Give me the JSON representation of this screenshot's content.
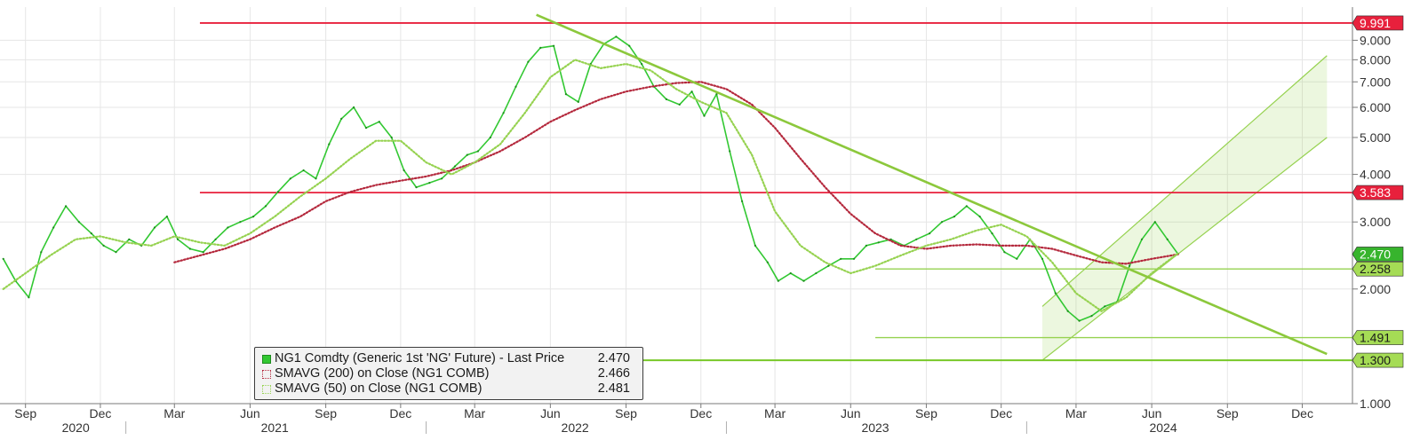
{
  "chart_data": {
    "type": "line",
    "title": "",
    "xlabel": "",
    "ylabel": "",
    "y_scale": "log",
    "ylim": [
      1,
      11
    ],
    "y_ticks": [
      {
        "value": 1,
        "label": "1.000"
      },
      {
        "value": 2,
        "label": "2.000"
      },
      {
        "value": 3,
        "label": "3.000"
      },
      {
        "value": 4,
        "label": "4.000"
      },
      {
        "value": 5,
        "label": "5.000"
      },
      {
        "value": 6,
        "label": "6.000"
      },
      {
        "value": 7,
        "label": "7.000"
      },
      {
        "value": 8,
        "label": "8.000"
      },
      {
        "value": 9,
        "label": "9.000"
      }
    ],
    "x_months": [
      {
        "label": "Sep",
        "date": "2020-09"
      },
      {
        "label": "Dec",
        "date": "2020-12"
      },
      {
        "label": "Mar",
        "date": "2021-03"
      },
      {
        "label": "Jun",
        "date": "2021-06"
      },
      {
        "label": "Sep",
        "date": "2021-09"
      },
      {
        "label": "Dec",
        "date": "2021-12"
      },
      {
        "label": "Mar",
        "date": "2022-03"
      },
      {
        "label": "Jun",
        "date": "2022-06"
      },
      {
        "label": "Sep",
        "date": "2022-09"
      },
      {
        "label": "Dec",
        "date": "2022-12"
      },
      {
        "label": "Mar",
        "date": "2023-03"
      },
      {
        "label": "Jun",
        "date": "2023-06"
      },
      {
        "label": "Sep",
        "date": "2023-09"
      },
      {
        "label": "Dec",
        "date": "2023-12"
      },
      {
        "label": "Mar",
        "date": "2024-03"
      },
      {
        "label": "Jun",
        "date": "2024-06"
      },
      {
        "label": "Sep",
        "date": "2024-09"
      },
      {
        "label": "Dec",
        "date": "2024-12"
      }
    ],
    "x_years": [
      {
        "label": "2020",
        "date": "2020-11"
      },
      {
        "label": "2021",
        "date": "2021-07"
      },
      {
        "label": "2022",
        "date": "2022-07"
      },
      {
        "label": "2023",
        "date": "2023-07"
      },
      {
        "label": "2024",
        "date": "2024-06-15"
      }
    ],
    "legend": {
      "placement": "bottom-left",
      "entries": [
        {
          "label": "NG1 Comdty (Generic 1st 'NG' Future) - Last Price",
          "value": "2.470",
          "style": "solid",
          "color": "#32c832"
        },
        {
          "label": "SMAVG (200)  on Close (NG1 COMB)",
          "value": "2.466",
          "style": "dotted",
          "color": "#b4283c"
        },
        {
          "label": "SMAVG (50)  on Close (NG1 COMB)",
          "value": "2.481",
          "style": "dotted",
          "color": "#96d250"
        }
      ]
    },
    "price_badges": [
      {
        "label": "9.991",
        "value": 9.991,
        "bg": "#e8203c",
        "fg": "#ffffff"
      },
      {
        "label": "3.583",
        "value": 3.583,
        "bg": "#e8203c",
        "fg": "#ffffff"
      },
      {
        "label": "2.470",
        "value": 2.47,
        "bg": "#37b42d",
        "fg": "#ffffff"
      },
      {
        "label": "2.258",
        "value": 2.258,
        "bg": "#a5dc55",
        "fg": "#1a1a1a"
      },
      {
        "label": "1.491",
        "value": 1.491,
        "bg": "#a5dc55",
        "fg": "#1a1a1a"
      },
      {
        "label": "1.300",
        "value": 1.3,
        "bg": "#a5dc55",
        "fg": "#1a1a1a"
      }
    ],
    "horizontal_lines": [
      {
        "value": 9.991,
        "from": "2021-04",
        "color": "#e8203c"
      },
      {
        "value": 3.583,
        "from": "2021-04",
        "color": "#e8203c"
      },
      {
        "value": 2.258,
        "from": "2023-07",
        "color": "#96d250"
      },
      {
        "value": 1.491,
        "from": "2023-07",
        "color": "#96d250"
      },
      {
        "value": 1.3,
        "from": "2022-03",
        "color": "#78c828"
      }
    ],
    "trendline": {
      "from": {
        "date": "2022-05",
        "value": 10.5
      },
      "to": {
        "date": "2024-12-31",
        "value": 1.35
      },
      "color": "#8cc83c"
    },
    "channel": {
      "color": "#96d250",
      "lower": {
        "from": {
          "date": "2024-01-20",
          "value": 1.3
        },
        "to": {
          "date": "2024-12-31",
          "value": 5.0
        }
      },
      "upper": {
        "from": {
          "date": "2024-01-20",
          "value": 1.8
        },
        "to": {
          "date": "2024-12-31",
          "value": 8.2
        }
      }
    },
    "series": [
      {
        "name": "NG1 Comdty (Generic 1st 'NG' Future) - Last Price",
        "color": "#32c832",
        "x": [
          "2020-08-05",
          "2020-08-20",
          "2020-09-05",
          "2020-09-20",
          "2020-10-05",
          "2020-10-20",
          "2020-11-05",
          "2020-11-20",
          "2020-12-05",
          "2020-12-20",
          "2021-01-05",
          "2021-01-20",
          "2021-02-05",
          "2021-02-20",
          "2021-03-05",
          "2021-03-20",
          "2021-04-05",
          "2021-04-20",
          "2021-05-05",
          "2021-05-20",
          "2021-06-05",
          "2021-06-20",
          "2021-07-05",
          "2021-07-20",
          "2021-08-05",
          "2021-08-20",
          "2021-09-05",
          "2021-09-20",
          "2021-10-05",
          "2021-10-20",
          "2021-11-05",
          "2021-11-20",
          "2021-12-05",
          "2021-12-20",
          "2022-01-05",
          "2022-01-20",
          "2022-02-05",
          "2022-02-20",
          "2022-03-05",
          "2022-03-20",
          "2022-04-05",
          "2022-04-20",
          "2022-05-05",
          "2022-05-20",
          "2022-06-05",
          "2022-06-20",
          "2022-07-05",
          "2022-07-20",
          "2022-08-05",
          "2022-08-20",
          "2022-09-05",
          "2022-09-20",
          "2022-10-05",
          "2022-10-20",
          "2022-11-05",
          "2022-11-20",
          "2022-12-05",
          "2022-12-20",
          "2023-01-05",
          "2023-01-20",
          "2023-02-05",
          "2023-02-20",
          "2023-03-05",
          "2023-03-20",
          "2023-04-05",
          "2023-04-20",
          "2023-05-05",
          "2023-05-20",
          "2023-06-05",
          "2023-06-20",
          "2023-07-05",
          "2023-07-20",
          "2023-08-05",
          "2023-08-20",
          "2023-09-05",
          "2023-09-20",
          "2023-10-05",
          "2023-10-20",
          "2023-11-05",
          "2023-11-20",
          "2023-12-05",
          "2023-12-20",
          "2024-01-05",
          "2024-01-20",
          "2024-02-05",
          "2024-02-20",
          "2024-03-05",
          "2024-03-20",
          "2024-04-05",
          "2024-04-20",
          "2024-05-05",
          "2024-05-20",
          "2024-06-05",
          "2024-06-20",
          "2024-07-03"
        ],
        "values": [
          2.4,
          2.1,
          1.9,
          2.5,
          2.9,
          3.3,
          3.0,
          2.8,
          2.6,
          2.5,
          2.7,
          2.6,
          2.9,
          3.1,
          2.7,
          2.55,
          2.5,
          2.7,
          2.9,
          3.0,
          3.1,
          3.3,
          3.6,
          3.9,
          4.1,
          3.9,
          4.8,
          5.6,
          6.0,
          5.3,
          5.5,
          5.0,
          4.1,
          3.7,
          3.8,
          3.9,
          4.2,
          4.5,
          4.6,
          5.0,
          5.8,
          6.8,
          7.9,
          8.6,
          8.7,
          6.5,
          6.2,
          7.8,
          8.8,
          9.2,
          8.7,
          7.8,
          6.8,
          6.3,
          6.1,
          6.6,
          5.7,
          6.5,
          4.6,
          3.4,
          2.6,
          2.35,
          2.1,
          2.2,
          2.1,
          2.2,
          2.3,
          2.4,
          2.4,
          2.6,
          2.65,
          2.7,
          2.6,
          2.7,
          2.8,
          3.0,
          3.1,
          3.3,
          3.1,
          2.8,
          2.5,
          2.4,
          2.7,
          2.4,
          1.95,
          1.75,
          1.65,
          1.7,
          1.8,
          1.85,
          2.3,
          2.7,
          3.0,
          2.7,
          2.47
        ]
      },
      {
        "name": "SMAVG (200)  on Close (NG1 COMB)",
        "color": "#b4283c",
        "x": [
          "2021-03-01",
          "2021-04-01",
          "2021-05-01",
          "2021-06-01",
          "2021-07-01",
          "2021-08-01",
          "2021-09-01",
          "2021-10-01",
          "2021-11-01",
          "2021-12-01",
          "2022-01-01",
          "2022-02-01",
          "2022-03-01",
          "2022-04-01",
          "2022-05-01",
          "2022-06-01",
          "2022-07-01",
          "2022-08-01",
          "2022-09-01",
          "2022-10-01",
          "2022-11-01",
          "2022-12-01",
          "2023-01-01",
          "2023-02-01",
          "2023-03-01",
          "2023-04-01",
          "2023-05-01",
          "2023-06-01",
          "2023-07-01",
          "2023-08-01",
          "2023-09-01",
          "2023-10-01",
          "2023-11-01",
          "2023-12-01",
          "2024-01-01",
          "2024-02-01",
          "2024-03-01",
          "2024-04-01",
          "2024-05-01",
          "2024-06-01",
          "2024-07-03"
        ],
        "values": [
          2.35,
          2.45,
          2.55,
          2.7,
          2.9,
          3.1,
          3.4,
          3.6,
          3.75,
          3.85,
          3.95,
          4.1,
          4.3,
          4.6,
          5.0,
          5.5,
          5.9,
          6.3,
          6.6,
          6.8,
          6.95,
          7.0,
          6.7,
          6.1,
          5.3,
          4.4,
          3.7,
          3.15,
          2.8,
          2.6,
          2.55,
          2.6,
          2.62,
          2.6,
          2.6,
          2.55,
          2.45,
          2.35,
          2.33,
          2.4,
          2.466
        ]
      },
      {
        "name": "SMAVG (50)  on Close (NG1 COMB)",
        "color": "#96d250",
        "x": [
          "2020-08-05",
          "2020-09-01",
          "2020-10-01",
          "2020-11-01",
          "2020-12-01",
          "2021-01-01",
          "2021-02-01",
          "2021-03-01",
          "2021-04-01",
          "2021-05-01",
          "2021-06-01",
          "2021-07-01",
          "2021-08-01",
          "2021-09-01",
          "2021-10-01",
          "2021-11-01",
          "2021-12-01",
          "2022-01-01",
          "2022-02-01",
          "2022-03-01",
          "2022-04-01",
          "2022-05-01",
          "2022-06-01",
          "2022-07-01",
          "2022-08-01",
          "2022-09-01",
          "2022-10-01",
          "2022-11-01",
          "2022-12-01",
          "2023-01-01",
          "2023-02-01",
          "2023-03-01",
          "2023-04-01",
          "2023-05-01",
          "2023-06-01",
          "2023-07-01",
          "2023-08-01",
          "2023-09-01",
          "2023-10-01",
          "2023-11-01",
          "2023-12-01",
          "2024-01-01",
          "2024-02-01",
          "2024-03-01",
          "2024-04-01",
          "2024-05-01",
          "2024-06-01",
          "2024-07-03"
        ],
        "values": [
          2.0,
          2.2,
          2.45,
          2.7,
          2.75,
          2.65,
          2.6,
          2.75,
          2.65,
          2.6,
          2.8,
          3.1,
          3.5,
          3.9,
          4.4,
          4.9,
          4.9,
          4.3,
          4.0,
          4.3,
          4.8,
          5.8,
          7.2,
          8.0,
          7.6,
          7.8,
          7.5,
          6.7,
          6.2,
          5.8,
          4.5,
          3.2,
          2.6,
          2.35,
          2.2,
          2.3,
          2.45,
          2.6,
          2.7,
          2.85,
          2.95,
          2.75,
          2.35,
          1.95,
          1.75,
          1.9,
          2.2,
          2.481
        ]
      }
    ]
  },
  "colors": {
    "grid": "#e6e6e6",
    "axis": "#7a7a7a",
    "tick_text": "#333333",
    "background": "#ffffff"
  }
}
